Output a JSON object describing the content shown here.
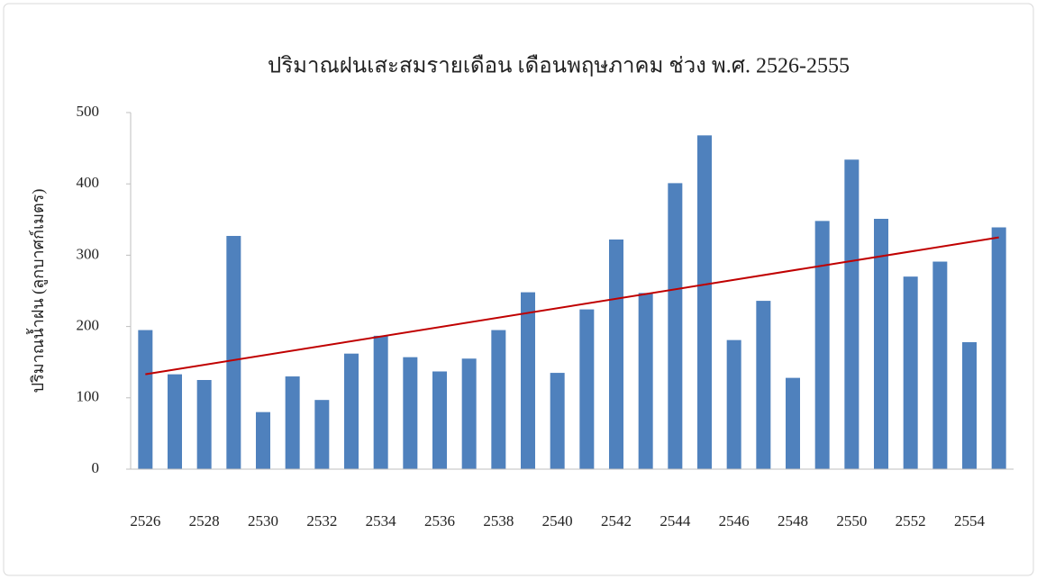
{
  "chart_data": {
    "type": "bar",
    "title": "ปริมาณฝนเสะสมรายเดือน เดือนพฤษภาคม ช่วง พ.ศ. 2526-2555",
    "y_label": "ปริมาณน้ำฝน (ลูกบาศก์เมตร)",
    "categories": [
      "2526",
      null,
      "2528",
      null,
      "2530",
      null,
      "2532",
      null,
      "2534",
      null,
      "2536",
      null,
      "2538",
      null,
      "2540",
      null,
      "2542",
      null,
      "2544",
      null,
      "2546",
      null,
      "2548",
      null,
      "2550",
      null,
      "2552",
      null,
      "2554",
      null
    ],
    "values": [
      195,
      133,
      125,
      327,
      80,
      130,
      97,
      162,
      187,
      157,
      137,
      155,
      195,
      248,
      135,
      224,
      322,
      247,
      401,
      468,
      181,
      236,
      128,
      348,
      434,
      351,
      270,
      291,
      178,
      339
    ],
    "color": "#4f81bd",
    "trendline": {
      "color": "#c00000",
      "values": [
        133,
        325
      ]
    },
    "ylim": [
      0,
      500
    ],
    "yticks": [
      0,
      100,
      200,
      300,
      400,
      500
    ],
    "grid": false
  }
}
